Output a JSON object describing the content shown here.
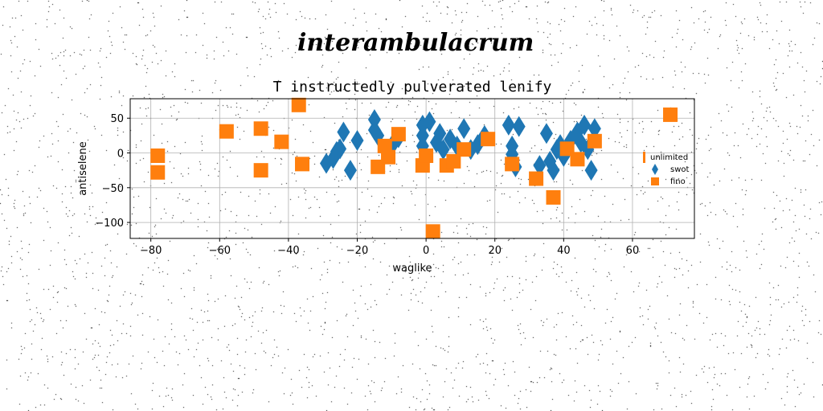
{
  "figure": {
    "suptitle": "interambulacrum"
  },
  "chart_data": {
    "type": "scatter",
    "title": "T instructedly pulverated lenify",
    "xlabel": "waglike",
    "ylabel": "antiselene",
    "xlim": [
      -86,
      78
    ],
    "ylim": [
      -123,
      78
    ],
    "xticks": [
      -80,
      -60,
      -40,
      -20,
      0,
      20,
      40,
      60
    ],
    "yticks": [
      -100,
      -50,
      0,
      50
    ],
    "grid": true,
    "legend_position": "right",
    "legend_entries": [
      "unlimited",
      "swot",
      "fino"
    ],
    "colors": {
      "swot": "#1f77b4",
      "fino": "#ff7f0e"
    },
    "series": [
      {
        "name": "swot",
        "marker": "thin_diamond",
        "points": [
          [
            -29,
            -15
          ],
          [
            -27,
            -8
          ],
          [
            -26,
            2
          ],
          [
            -25,
            6
          ],
          [
            -24,
            30
          ],
          [
            -22,
            -25
          ],
          [
            -20,
            18
          ],
          [
            -15,
            48
          ],
          [
            -15,
            33
          ],
          [
            -14,
            25
          ],
          [
            -10,
            10
          ],
          [
            -9,
            18
          ],
          [
            -8,
            22
          ],
          [
            -1,
            40
          ],
          [
            -1,
            25
          ],
          [
            -1,
            10
          ],
          [
            1,
            45
          ],
          [
            3,
            15
          ],
          [
            4,
            28
          ],
          [
            5,
            5
          ],
          [
            7,
            20
          ],
          [
            9,
            10
          ],
          [
            11,
            35
          ],
          [
            13,
            5
          ],
          [
            15,
            12
          ],
          [
            17,
            25
          ],
          [
            24,
            40
          ],
          [
            25,
            10
          ],
          [
            25,
            -2
          ],
          [
            26,
            -20
          ],
          [
            27,
            38
          ],
          [
            33,
            -18
          ],
          [
            35,
            28
          ],
          [
            36,
            -12
          ],
          [
            37,
            -25
          ],
          [
            38,
            5
          ],
          [
            39,
            12
          ],
          [
            40,
            -5
          ],
          [
            42,
            18
          ],
          [
            44,
            30
          ],
          [
            45,
            15
          ],
          [
            46,
            40
          ],
          [
            47,
            5
          ],
          [
            48,
            -25
          ],
          [
            49,
            35
          ]
        ]
      },
      {
        "name": "fino",
        "marker": "square",
        "points": [
          [
            -78,
            -4
          ],
          [
            -78,
            -28
          ],
          [
            -58,
            31
          ],
          [
            -48,
            35
          ],
          [
            -48,
            -25
          ],
          [
            -42,
            16
          ],
          [
            -37,
            69
          ],
          [
            -36,
            -16
          ],
          [
            -14,
            -20
          ],
          [
            -12,
            10
          ],
          [
            -11,
            -6
          ],
          [
            -8,
            27
          ],
          [
            -1,
            -18
          ],
          [
            0,
            -4
          ],
          [
            2,
            -113
          ],
          [
            6,
            -18
          ],
          [
            8,
            -12
          ],
          [
            11,
            5
          ],
          [
            18,
            20
          ],
          [
            25,
            -16
          ],
          [
            32,
            -37
          ],
          [
            37,
            -64
          ],
          [
            41,
            6
          ],
          [
            44,
            -9
          ],
          [
            49,
            17
          ],
          [
            71,
            55
          ]
        ]
      }
    ]
  }
}
